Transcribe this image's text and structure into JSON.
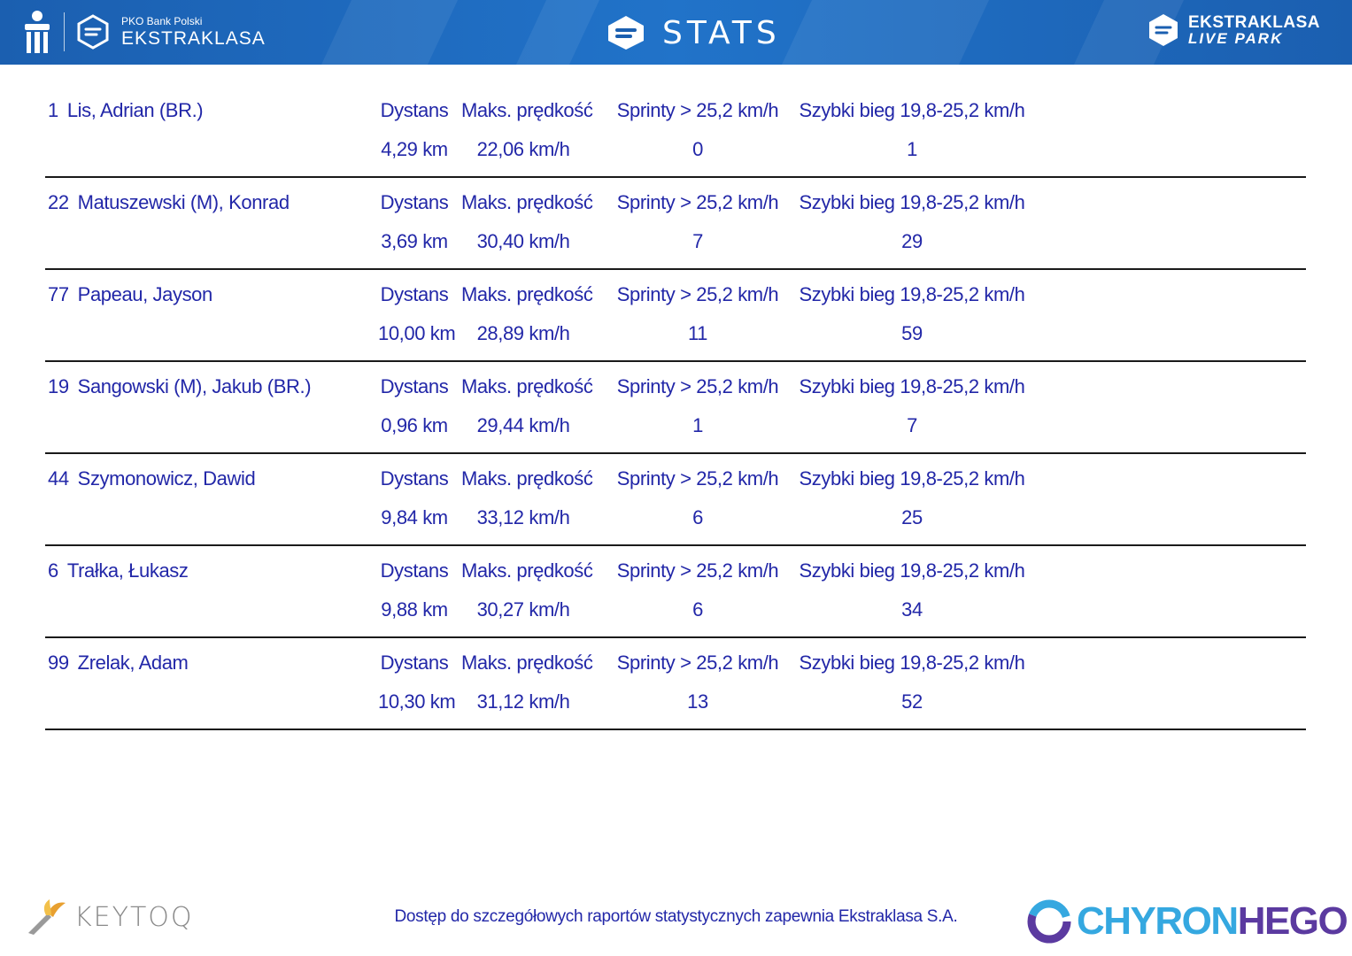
{
  "header": {
    "left_brand_small": "PKO Bank Polski",
    "left_brand_big": "EKSTRAKLASA",
    "title": "STATS",
    "right_brand_line1": "EKSTRAKLASA",
    "right_brand_line2": "LIVE PARK"
  },
  "labels": {
    "distance": "Dystans",
    "max_speed": "Maks. prędkość",
    "sprints": "Sprinty > 25,2 km/h",
    "fast_run": "Szybki bieg 19,8-25,2 km/h"
  },
  "players": [
    {
      "number": "1",
      "name": "Lis, Adrian (BR.)",
      "distance": "4,29 km",
      "max_speed": "22,06 km/h",
      "sprints": "0",
      "fast_run": "1"
    },
    {
      "number": "22",
      "name": "Matuszewski (M), Konrad",
      "distance": "3,69 km",
      "max_speed": "30,40 km/h",
      "sprints": "7",
      "fast_run": "29"
    },
    {
      "number": "77",
      "name": "Papeau, Jayson",
      "distance": "10,00 km",
      "max_speed": "28,89 km/h",
      "sprints": "11",
      "fast_run": "59"
    },
    {
      "number": "19",
      "name": "Sangowski (M), Jakub (BR.)",
      "distance": "0,96 km",
      "max_speed": "29,44 km/h",
      "sprints": "1",
      "fast_run": "7"
    },
    {
      "number": "44",
      "name": "Szymonowicz, Dawid",
      "distance": "9,84 km",
      "max_speed": "33,12 km/h",
      "sprints": "6",
      "fast_run": "25"
    },
    {
      "number": "6",
      "name": "Trałka, Łukasz",
      "distance": "9,88 km",
      "max_speed": "30,27 km/h",
      "sprints": "6",
      "fast_run": "34"
    },
    {
      "number": "99",
      "name": "Zrelak, Adam",
      "distance": "10,30 km",
      "max_speed": "31,12 km/h",
      "sprints": "13",
      "fast_run": "52"
    }
  ],
  "footer": {
    "keytoq": "KEYTOQ",
    "note": "Dostęp do szczegółowych raportów statystycznych zapewnia Ekstraklasa S.A.",
    "chyron_a": "CHYRON",
    "chyron_b": "HEGO"
  },
  "colors": {
    "header_blue": "#1b5fb0",
    "text_blue": "#2227a8",
    "chyron_blue": "#35a8e0",
    "chyron_purple": "#5b3aa0"
  }
}
